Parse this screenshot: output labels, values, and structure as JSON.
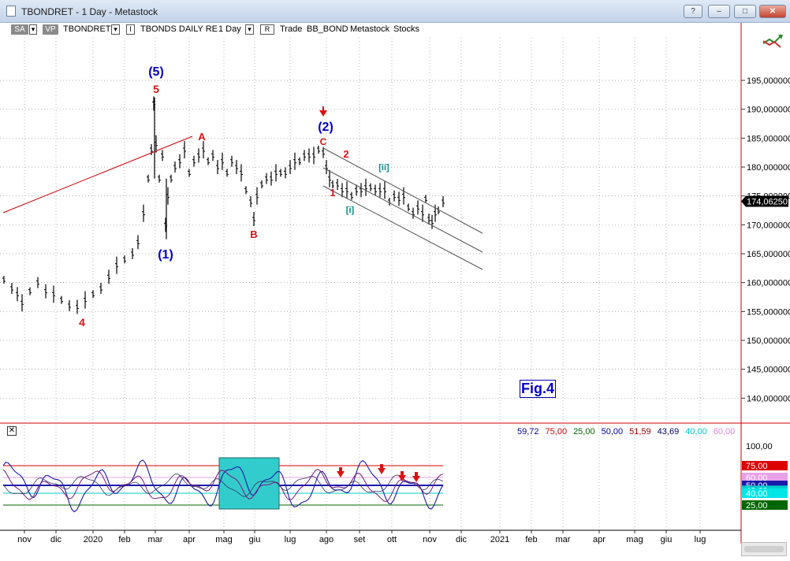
{
  "window": {
    "title": "TBONDRET - 1 Day - Metastock",
    "buttons": [
      "help",
      "minimize",
      "restore",
      "close"
    ]
  },
  "toolbar": {
    "sa_label": "SA",
    "vp_label": "VP",
    "symbol": "TBONDRET",
    "tb_flag": "I",
    "security_name": "TBONDS DAILY RE",
    "period": "1 Day",
    "r_flag": "R",
    "trade_label": "Trade",
    "template": "BB_BOND",
    "app_label": "Metastock",
    "mode_label": "Stocks"
  },
  "price_axis": {
    "ticks": [
      "195,000000",
      "190,000000",
      "185,000000",
      "180,000000",
      "175,000000",
      "170,000000",
      "165,000000",
      "160,000000",
      "155,000000",
      "150,000000",
      "145,000000",
      "140,000000"
    ],
    "tick_values": [
      195,
      190,
      185,
      180,
      175,
      170,
      165,
      160,
      155,
      150,
      145,
      140
    ],
    "last_price": "174,06250",
    "last_value": 174.0625
  },
  "wave_labels": [
    {
      "text": "(5)",
      "color": "#0000cc"
    },
    {
      "text": "5",
      "color": "#dd1111"
    },
    {
      "text": "A",
      "color": "#dd1111"
    },
    {
      "text": "(2)",
      "color": "#0000cc"
    },
    {
      "text": "C",
      "color": "#dd1111"
    },
    {
      "text": "2",
      "color": "#dd1111"
    },
    {
      "text": "[ii]",
      "color": "#008b8b"
    },
    {
      "text": "1",
      "color": "#dd1111"
    },
    {
      "text": "[i]",
      "color": "#008b8b"
    },
    {
      "text": "B",
      "color": "#dd1111"
    },
    {
      "text": "(1)",
      "color": "#0000cc"
    },
    {
      "text": "4",
      "color": "#dd1111"
    }
  ],
  "figure_label": "Fig.4",
  "indicator": {
    "readouts": [
      {
        "value": "59,72",
        "color": "#0000aa"
      },
      {
        "value": "75,00",
        "color": "#cc0000"
      },
      {
        "value": "25,00",
        "color": "#006600"
      },
      {
        "value": "50,00",
        "color": "#0000aa"
      },
      {
        "value": "51,59",
        "color": "#aa0000"
      },
      {
        "value": "43,69",
        "color": "#000066"
      },
      {
        "value": "40,00",
        "color": "#00cccc"
      },
      {
        "value": "60,00",
        "color": "#dd88dd"
      }
    ],
    "axis": [
      {
        "label": "100,00",
        "value": 100,
        "bg": "#ffffff",
        "fg": "#000000"
      },
      {
        "label": "75,00",
        "value": 75,
        "bg": "#dd0000",
        "fg": "#ffffff"
      },
      {
        "label": "60,00",
        "value": 60,
        "bg": "#e8a0e8",
        "fg": "#ffffff"
      },
      {
        "label": "50,00",
        "value": 50,
        "bg": "#1a1aaa",
        "fg": "#ffffff"
      },
      {
        "label": "43,69",
        "value": 43.69,
        "bg": "#00cccc",
        "fg": "#ffffff"
      },
      {
        "label": "40,00",
        "value": 40,
        "bg": "#00e6e6",
        "fg": "#ffffff"
      },
      {
        "label": "25,00",
        "value": 25,
        "bg": "#006600",
        "fg": "#ffffff"
      }
    ]
  },
  "time_axis": [
    "nov",
    "dic",
    "2020",
    "feb",
    "mar",
    "apr",
    "mag",
    "giu",
    "lug",
    "ago",
    "set",
    "ott",
    "nov",
    "dic",
    "2021",
    "feb",
    "mar",
    "apr",
    "mag",
    "giu",
    "lug"
  ],
  "colors": {
    "price_bars": "#000000",
    "trendline": "#cc0000",
    "channel": "#444444",
    "grid": "#888888",
    "panel_border": "#cc0000",
    "highlight_box": "#33cccc"
  },
  "icons": {
    "chart_corner": "trend-arrows-icon",
    "indicator_close": "close-box-icon",
    "sell_markers": "red-down-arrow-icon"
  }
}
